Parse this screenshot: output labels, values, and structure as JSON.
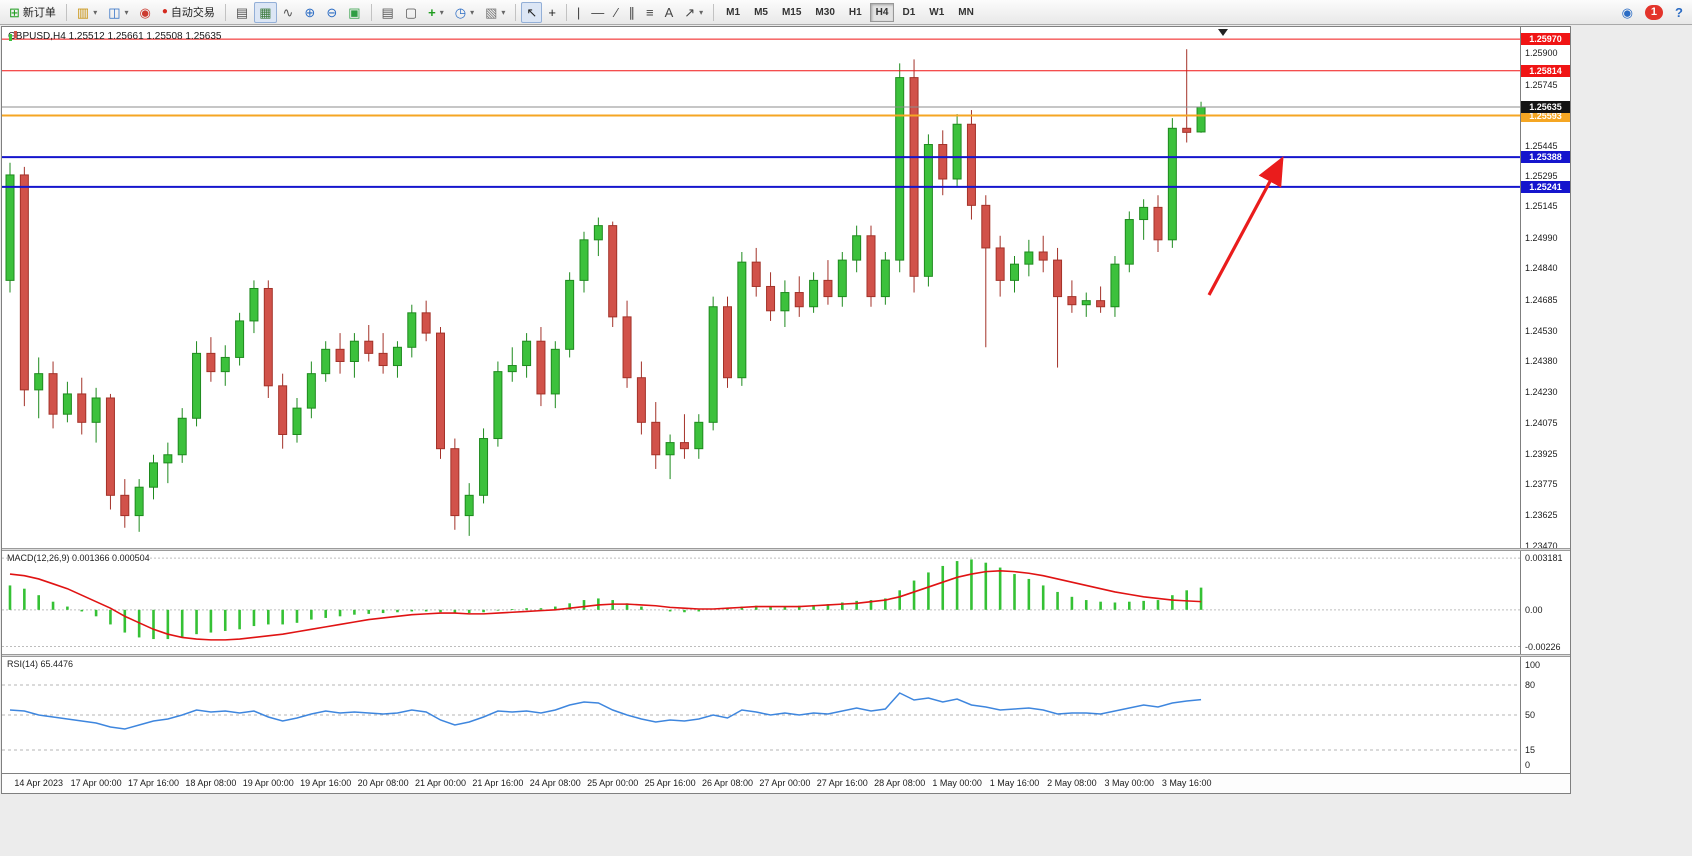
{
  "toolbar": {
    "new_order": "新订单",
    "autotrading": "自动交易",
    "timeframes": [
      "M1",
      "M5",
      "M15",
      "M30",
      "H1",
      "H4",
      "D1",
      "W1",
      "MN"
    ],
    "active_timeframe": "H4",
    "notification_badge": "1"
  },
  "icons": {
    "new_order": "⊞",
    "new_chart": "▥",
    "profiles": "◫",
    "market_watch": "◉",
    "autotrade": "●",
    "bar_chart": "▤",
    "candlestick": "▦",
    "line_chart": "∿",
    "zoom_in": "⊕",
    "zoom_out": "⊖",
    "tile_windows": "▣",
    "charts_list": "▤",
    "data_window": "▢",
    "indicators": "+",
    "periods": "◷",
    "templates": "▧",
    "cursor": "↖",
    "crosshair": "+",
    "vertical_line": "|",
    "horizontal_line": "—",
    "trendline": "∕",
    "channel": "∥",
    "fibonacci": "≡",
    "text": "A",
    "arrows": "↗",
    "dropdown": "▾",
    "community": "◉",
    "help": "?",
    "shift_marker": "▼"
  },
  "style": {
    "up_fill": "#3cc13c",
    "up_stroke": "#1e8a1e",
    "down_fill": "#d1524a",
    "down_stroke": "#a33229",
    "macd_color": "#35c135",
    "macd_signal_color": "#e01313",
    "rsi_color": "#3e86de",
    "level_red": "#f01414",
    "level_orange": "#f5a623",
    "level_blue": "#1515cd",
    "arrow_color": "#ea1c1c"
  },
  "chart": {
    "title": "GBPUSD,H4 1.25512 1.25661 1.25508 1.25635",
    "symbol": "GBPUSD",
    "timeframe": "H4",
    "current_price": "1.25635",
    "current_price_value": 1.25635,
    "levels": [
      {
        "label": "1.25970",
        "price": 1.2597,
        "color": "#f01414",
        "width": 1
      },
      {
        "label": "1.25814",
        "price": 1.25814,
        "color": "#f01414",
        "width": 1
      },
      {
        "label": "1.25593",
        "price": 1.25593,
        "color": "#f5a623",
        "width": 2
      },
      {
        "label": "1.25388",
        "price": 1.25388,
        "color": "#1515cd",
        "width": 2
      },
      {
        "label": "1.25241",
        "price": 1.25241,
        "color": "#1515cd",
        "width": 2
      }
    ],
    "annotation_arrow": {
      "type": "arrow",
      "direction": "up-right",
      "color": "#ea1c1c"
    }
  },
  "chart_data": {
    "type": "candlestick",
    "symbol": "GBPUSD",
    "timeframe": "H4",
    "current_ohlc": {
      "open": 1.25512,
      "high": 1.25661,
      "low": 1.25508,
      "close": 1.25635
    },
    "y_ticks": [
      "1.25900",
      "1.25745",
      "1.25595",
      "1.25445",
      "1.25295",
      "1.25145",
      "1.24990",
      "1.24840",
      "1.24685",
      "1.24530",
      "1.24380",
      "1.24230",
      "1.24075",
      "1.23925",
      "1.23775",
      "1.23625",
      "1.23470"
    ],
    "x_labels": [
      "14 Apr 2023",
      "17 Apr 00:00",
      "17 Apr 16:00",
      "18 Apr 08:00",
      "19 Apr 00:00",
      "19 Apr 16:00",
      "20 Apr 08:00",
      "21 Apr 00:00",
      "21 Apr 16:00",
      "24 Apr 08:00",
      "25 Apr 00:00",
      "25 Apr 16:00",
      "26 Apr 08:00",
      "27 Apr 00:00",
      "27 Apr 16:00",
      "28 Apr 08:00",
      "1 May 00:00",
      "1 May 16:00",
      "2 May 08:00",
      "3 May 00:00",
      "3 May 16:00"
    ],
    "ohlc": [
      [
        1.2478,
        1.2536,
        1.2472,
        1.253
      ],
      [
        1.253,
        1.2534,
        1.2416,
        1.2424
      ],
      [
        1.2424,
        1.244,
        1.241,
        1.2432
      ],
      [
        1.2432,
        1.2438,
        1.2405,
        1.2412
      ],
      [
        1.2412,
        1.2428,
        1.2408,
        1.2422
      ],
      [
        1.2422,
        1.243,
        1.2402,
        1.2408
      ],
      [
        1.2408,
        1.2425,
        1.2398,
        1.242
      ],
      [
        1.242,
        1.2422,
        1.2365,
        1.2372
      ],
      [
        1.2372,
        1.238,
        1.2356,
        1.2362
      ],
      [
        1.2362,
        1.238,
        1.2354,
        1.2376
      ],
      [
        1.2376,
        1.2392,
        1.237,
        1.2388
      ],
      [
        1.2388,
        1.2398,
        1.2378,
        1.2392
      ],
      [
        1.2392,
        1.2415,
        1.2388,
        1.241
      ],
      [
        1.241,
        1.2448,
        1.2406,
        1.2442
      ],
      [
        1.2442,
        1.245,
        1.2428,
        1.2433
      ],
      [
        1.2433,
        1.2446,
        1.2426,
        1.244
      ],
      [
        1.244,
        1.2462,
        1.2436,
        1.2458
      ],
      [
        1.2458,
        1.2478,
        1.2452,
        1.2474
      ],
      [
        1.2474,
        1.2478,
        1.242,
        1.2426
      ],
      [
        1.2426,
        1.2432,
        1.2395,
        1.2402
      ],
      [
        1.2402,
        1.242,
        1.2398,
        1.2415
      ],
      [
        1.2415,
        1.2438,
        1.241,
        1.2432
      ],
      [
        1.2432,
        1.2448,
        1.2428,
        1.2444
      ],
      [
        1.2444,
        1.2452,
        1.2432,
        1.2438
      ],
      [
        1.2438,
        1.2452,
        1.243,
        1.2448
      ],
      [
        1.2448,
        1.2456,
        1.2438,
        1.2442
      ],
      [
        1.2442,
        1.2452,
        1.2432,
        1.2436
      ],
      [
        1.2436,
        1.2448,
        1.243,
        1.2445
      ],
      [
        1.2445,
        1.2466,
        1.244,
        1.2462
      ],
      [
        1.2462,
        1.2468,
        1.2448,
        1.2452
      ],
      [
        1.2452,
        1.2455,
        1.239,
        1.2395
      ],
      [
        1.2395,
        1.24,
        1.2355,
        1.2362
      ],
      [
        1.2362,
        1.2378,
        1.2352,
        1.2372
      ],
      [
        1.2372,
        1.2405,
        1.2368,
        1.24
      ],
      [
        1.24,
        1.2438,
        1.2396,
        1.2433
      ],
      [
        1.2433,
        1.2445,
        1.2428,
        1.2436
      ],
      [
        1.2436,
        1.2452,
        1.243,
        1.2448
      ],
      [
        1.2448,
        1.2455,
        1.2416,
        1.2422
      ],
      [
        1.2422,
        1.2448,
        1.2415,
        1.2444
      ],
      [
        1.2444,
        1.2482,
        1.244,
        1.2478
      ],
      [
        1.2478,
        1.2502,
        1.2472,
        1.2498
      ],
      [
        1.2498,
        1.2509,
        1.249,
        1.2505
      ],
      [
        1.2505,
        1.2507,
        1.2455,
        1.246
      ],
      [
        1.246,
        1.2468,
        1.2425,
        1.243
      ],
      [
        1.243,
        1.2438,
        1.2402,
        1.2408
      ],
      [
        1.2408,
        1.2418,
        1.2385,
        1.2392
      ],
      [
        1.2392,
        1.2402,
        1.238,
        1.2398
      ],
      [
        1.2398,
        1.2412,
        1.239,
        1.2395
      ],
      [
        1.2395,
        1.2412,
        1.239,
        1.2408
      ],
      [
        1.2408,
        1.247,
        1.2404,
        1.2465
      ],
      [
        1.2465,
        1.247,
        1.2425,
        1.243
      ],
      [
        1.243,
        1.2492,
        1.2426,
        1.2487
      ],
      [
        1.2487,
        1.2494,
        1.247,
        1.2475
      ],
      [
        1.2475,
        1.2482,
        1.2458,
        1.2463
      ],
      [
        1.2463,
        1.2478,
        1.2455,
        1.2472
      ],
      [
        1.2472,
        1.248,
        1.246,
        1.2465
      ],
      [
        1.2465,
        1.2482,
        1.2462,
        1.2478
      ],
      [
        1.2478,
        1.2488,
        1.2466,
        1.247
      ],
      [
        1.247,
        1.2492,
        1.2465,
        1.2488
      ],
      [
        1.2488,
        1.2505,
        1.2482,
        1.25
      ],
      [
        1.25,
        1.2505,
        1.2465,
        1.247
      ],
      [
        1.247,
        1.2492,
        1.2466,
        1.2488
      ],
      [
        1.2488,
        1.2585,
        1.2482,
        1.2578
      ],
      [
        1.2578,
        1.2587,
        1.2472,
        1.248
      ],
      [
        1.248,
        1.255,
        1.2475,
        1.2545
      ],
      [
        1.2545,
        1.2552,
        1.252,
        1.2528
      ],
      [
        1.2528,
        1.256,
        1.2524,
        1.2555
      ],
      [
        1.2555,
        1.2562,
        1.2508,
        1.2515
      ],
      [
        1.2515,
        1.252,
        1.2445,
        1.2494
      ],
      [
        1.2494,
        1.25,
        1.247,
        1.2478
      ],
      [
        1.2478,
        1.249,
        1.2472,
        1.2486
      ],
      [
        1.2486,
        1.2498,
        1.248,
        1.2492
      ],
      [
        1.2492,
        1.25,
        1.2482,
        1.2488
      ],
      [
        1.2488,
        1.2494,
        1.2435,
        1.247
      ],
      [
        1.247,
        1.2478,
        1.2462,
        1.2466
      ],
      [
        1.2466,
        1.2472,
        1.246,
        1.2468
      ],
      [
        1.2468,
        1.2475,
        1.2462,
        1.2465
      ],
      [
        1.2465,
        1.249,
        1.246,
        1.2486
      ],
      [
        1.2486,
        1.2512,
        1.2482,
        1.2508
      ],
      [
        1.2508,
        1.2518,
        1.2498,
        1.2514
      ],
      [
        1.2514,
        1.252,
        1.2492,
        1.2498
      ],
      [
        1.2498,
        1.2558,
        1.2494,
        1.2553
      ],
      [
        1.2553,
        1.2592,
        1.2546,
        1.2551
      ],
      [
        1.25512,
        1.25661,
        1.25508,
        1.25635
      ]
    ],
    "indicators": {
      "macd": {
        "label": "MACD(12,26,9) 0.001366 0.000504",
        "params": "12,26,9",
        "main_value": 0.001366,
        "signal_value": 0.000504,
        "axis_labels": [
          "0.003181",
          "0.00",
          "-0.00226"
        ],
        "histogram": [
          0.0015,
          0.0013,
          0.0009,
          0.0005,
          0.0002,
          -0.0001,
          -0.0004,
          -0.0009,
          -0.0014,
          -0.0017,
          -0.0018,
          -0.0018,
          -0.0017,
          -0.0015,
          -0.0014,
          -0.0013,
          -0.0012,
          -0.001,
          -0.0009,
          -0.0009,
          -0.0008,
          -0.0006,
          -0.0005,
          -0.0004,
          -0.0003,
          -0.00025,
          -0.0002,
          -0.00015,
          -0.0001,
          -0.0001,
          -0.00015,
          -0.0002,
          -0.0002,
          -0.00015,
          -5e-05,
          5e-05,
          0.0001,
          0.0001,
          0.0002,
          0.0004,
          0.0006,
          0.0007,
          0.0006,
          0.0004,
          0.0002,
          0.0,
          -0.0001,
          -0.00015,
          -0.0001,
          0.0,
          0.0001,
          0.0002,
          0.00025,
          0.0002,
          0.0002,
          0.00025,
          0.0003,
          0.00035,
          0.00045,
          0.00055,
          0.0006,
          0.0007,
          0.0012,
          0.0018,
          0.0023,
          0.0027,
          0.003,
          0.0031,
          0.0029,
          0.0026,
          0.0022,
          0.0019,
          0.0015,
          0.0011,
          0.0008,
          0.0006,
          0.0005,
          0.00045,
          0.0005,
          0.00055,
          0.0006,
          0.0009,
          0.0012,
          0.001366
        ],
        "signal": [
          0.0022,
          0.0021,
          0.0019,
          0.0016,
          0.0013,
          0.0009,
          0.0005,
          0.0001,
          -0.0004,
          -0.0008,
          -0.0012,
          -0.0015,
          -0.0017,
          -0.0018,
          -0.00185,
          -0.00185,
          -0.0018,
          -0.0017,
          -0.0016,
          -0.0015,
          -0.00135,
          -0.0012,
          -0.00105,
          -0.0009,
          -0.00075,
          -0.0006,
          -0.0005,
          -0.0004,
          -0.0003,
          -0.00025,
          -0.0002,
          -0.0002,
          -0.00025,
          -0.00025,
          -0.0002,
          -0.00015,
          -0.0001,
          -5e-05,
          0.0,
          0.0001,
          0.0002,
          0.0003,
          0.00035,
          0.00035,
          0.0003,
          0.00025,
          0.00015,
          0.0001,
          5e-05,
          5e-05,
          0.0001,
          0.00015,
          0.0002,
          0.0002,
          0.0002,
          0.0002,
          0.00025,
          0.0003,
          0.00035,
          0.0004,
          0.0005,
          0.0006,
          0.0008,
          0.0011,
          0.0014,
          0.0017,
          0.002,
          0.0022,
          0.00235,
          0.0024,
          0.00235,
          0.00225,
          0.0021,
          0.0019,
          0.0017,
          0.0015,
          0.0013,
          0.0011,
          0.00095,
          0.0008,
          0.0007,
          0.0006,
          0.00055,
          0.000504
        ]
      },
      "rsi": {
        "label": "RSI(14) 65.4476",
        "period": 14,
        "value": 65.4476,
        "axis_labels": [
          "100",
          "80",
          "50",
          "15",
          "0"
        ],
        "values": [
          55,
          54,
          50,
          48,
          46,
          44,
          42,
          38,
          36,
          40,
          44,
          46,
          50,
          55,
          53,
          54,
          52,
          54,
          48,
          44,
          47,
          51,
          54,
          52,
          53,
          52,
          51,
          52,
          55,
          53,
          45,
          40,
          43,
          48,
          54,
          53,
          54,
          52,
          55,
          60,
          63,
          62,
          55,
          50,
          46,
          43,
          45,
          44,
          46,
          50,
          47,
          55,
          53,
          50,
          52,
          50,
          52,
          51,
          54,
          57,
          54,
          56,
          72,
          65,
          67,
          63,
          66,
          60,
          58,
          55,
          56,
          57,
          55,
          51,
          52,
          52,
          51,
          54,
          57,
          60,
          58,
          62,
          64,
          65.4
        ]
      }
    }
  }
}
